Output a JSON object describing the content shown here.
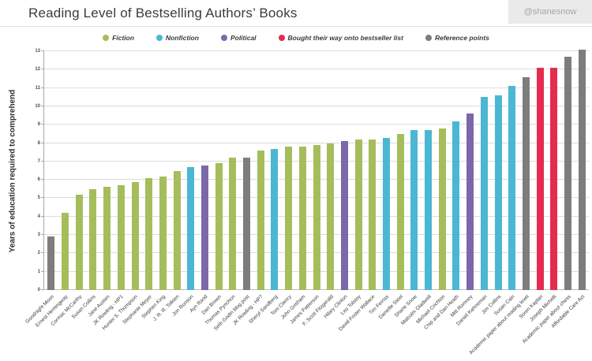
{
  "header": {
    "title": "Reading Level of Bestselling Authors’ Books",
    "badge": "@shanesnow"
  },
  "chart_data": {
    "type": "bar",
    "title": "Reading Level of Bestselling Authors’ Books",
    "xlabel": "",
    "ylabel": "Years of education required to comprehend",
    "ylim": [
      0,
      13
    ],
    "yticks": [
      0,
      1,
      2,
      3,
      4,
      5,
      6,
      7,
      8,
      9,
      10,
      11,
      12,
      13
    ],
    "grid": true,
    "legend_position": "top",
    "legend": [
      {
        "key": "fiction",
        "label": "Fiction",
        "color": "#a6bd5c"
      },
      {
        "key": "nonfiction",
        "label": "Nonfiction",
        "color": "#4bb7d3"
      },
      {
        "key": "political",
        "label": "Political",
        "color": "#7c68a9"
      },
      {
        "key": "bought",
        "label": "Bought their way onto bestseller list",
        "color": "#e62b50"
      },
      {
        "key": "reference",
        "label": "Reference points",
        "color": "#7d7d7d"
      }
    ],
    "bars": [
      {
        "label": "Goodnight Moon",
        "value": 2.9,
        "category": "reference"
      },
      {
        "label": "Ernest Hemingway",
        "value": 4.2,
        "category": "fiction"
      },
      {
        "label": "Cormac McCarthy",
        "value": 5.2,
        "category": "fiction"
      },
      {
        "label": "Susan Collins",
        "value": 5.5,
        "category": "fiction"
      },
      {
        "label": "Jane Austen",
        "value": 5.6,
        "category": "fiction"
      },
      {
        "label": "JK Rowling - HP1",
        "value": 5.7,
        "category": "fiction"
      },
      {
        "label": "Hunter S. Thompson",
        "value": 5.9,
        "category": "fiction"
      },
      {
        "label": "Stephanie Meyer",
        "value": 6.1,
        "category": "fiction"
      },
      {
        "label": "Stephen King",
        "value": 6.2,
        "category": "fiction"
      },
      {
        "label": "J. R. R. Tolkien",
        "value": 6.5,
        "category": "fiction"
      },
      {
        "label": "Jon Ronson",
        "value": 6.7,
        "category": "nonfiction"
      },
      {
        "label": "Ayn Rand",
        "value": 6.8,
        "category": "political"
      },
      {
        "label": "Dan Brown",
        "value": 6.9,
        "category": "fiction"
      },
      {
        "label": "Thomas Pynchon",
        "value": 7.2,
        "category": "fiction"
      },
      {
        "label": "Seth Godin blog post",
        "value": 7.2,
        "category": "reference"
      },
      {
        "label": "JK Rowling - HP7",
        "value": 7.6,
        "category": "fiction"
      },
      {
        "label": "Sheryl Sandberg",
        "value": 7.7,
        "category": "nonfiction"
      },
      {
        "label": "Tom Clancy",
        "value": 7.8,
        "category": "fiction"
      },
      {
        "label": "John Grisham",
        "value": 7.8,
        "category": "fiction"
      },
      {
        "label": "James Patterson",
        "value": 7.9,
        "category": "fiction"
      },
      {
        "label": "F. Scott Fitzgerald",
        "value": 8.0,
        "category": "fiction"
      },
      {
        "label": "Hilary Clinton",
        "value": 8.1,
        "category": "political"
      },
      {
        "label": "Leo Tolstoy",
        "value": 8.2,
        "category": "fiction"
      },
      {
        "label": "David Foster Wallace",
        "value": 8.2,
        "category": "fiction"
      },
      {
        "label": "Tim Ferriss",
        "value": 8.3,
        "category": "nonfiction"
      },
      {
        "label": "Danielle Steel",
        "value": 8.5,
        "category": "fiction"
      },
      {
        "label": "Shane Snow",
        "value": 8.7,
        "category": "nonfiction"
      },
      {
        "label": "Malcolm Gladwell",
        "value": 8.7,
        "category": "nonfiction"
      },
      {
        "label": "Michael Crichton",
        "value": 8.8,
        "category": "fiction"
      },
      {
        "label": "Chip and Dan Heath",
        "value": 9.2,
        "category": "nonfiction"
      },
      {
        "label": "Mitt Romney",
        "value": 9.6,
        "category": "political"
      },
      {
        "label": "Daniel Kahneman",
        "value": 10.5,
        "category": "nonfiction"
      },
      {
        "label": "Jim Collins",
        "value": 10.6,
        "category": "nonfiction"
      },
      {
        "label": "Susan Cain",
        "value": 11.1,
        "category": "nonfiction"
      },
      {
        "label": "Academic paper about reading level",
        "value": 11.6,
        "category": "reference"
      },
      {
        "label": "Soren Kaplan",
        "value": 12.1,
        "category": "bought"
      },
      {
        "label": "Joseph Michelli",
        "value": 12.1,
        "category": "bought"
      },
      {
        "label": "Academic paper about chess",
        "value": 12.7,
        "category": "reference"
      },
      {
        "label": "Affordable Care Act",
        "value": 13.1,
        "category": "reference"
      }
    ]
  }
}
